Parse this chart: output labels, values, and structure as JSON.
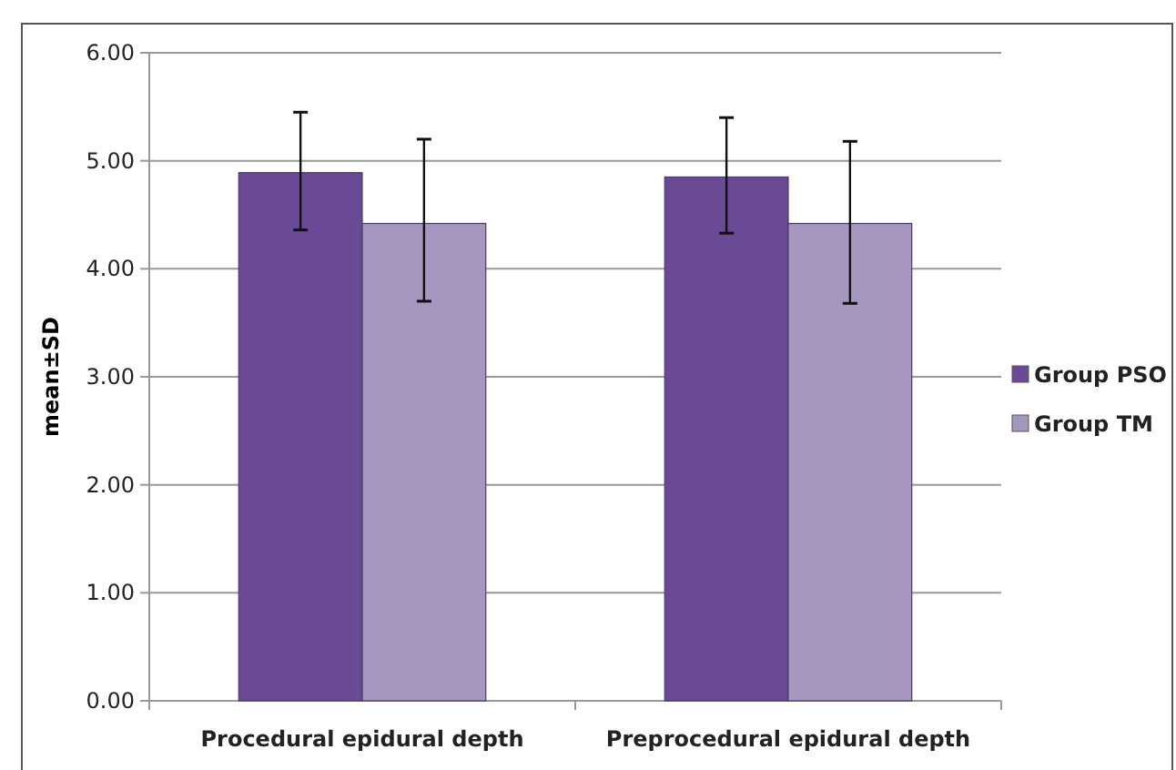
{
  "chart_data": {
    "type": "bar",
    "ylabel": "mean±SD",
    "categories": [
      "Procedural epidural depth",
      "Preprocedural epidural depth"
    ],
    "series": [
      {
        "name": "Group PSO",
        "color": "#6a4a94",
        "values": [
          4.89,
          4.85
        ],
        "errors": [
          [
            4.36,
            5.45
          ],
          [
            4.33,
            5.4
          ]
        ]
      },
      {
        "name": "Group TM",
        "color": "#a596c0",
        "values": [
          4.42,
          4.42
        ],
        "errors": [
          [
            3.7,
            5.2
          ],
          [
            3.68,
            5.18
          ]
        ]
      }
    ],
    "ylim": [
      0,
      6
    ],
    "yticks": [
      {
        "value": 0,
        "label": "0.00"
      },
      {
        "value": 1,
        "label": "1.00"
      },
      {
        "value": 2,
        "label": "2.00"
      },
      {
        "value": 3,
        "label": "3.00"
      },
      {
        "value": 4,
        "label": "4.00"
      },
      {
        "value": 5,
        "label": "5.00"
      },
      {
        "value": 6,
        "label": "6.00"
      }
    ],
    "grid": "y",
    "legend": "right"
  }
}
